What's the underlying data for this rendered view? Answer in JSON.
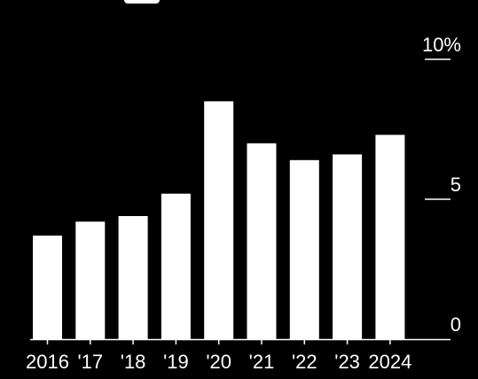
{
  "colors": {
    "background": "#000000",
    "bars": "#ffffff",
    "axis": "#ffffff",
    "text": "#ffffff"
  },
  "chart_data": {
    "type": "bar",
    "categories": [
      "2016",
      "'17",
      "'18",
      "'19",
      "'20",
      "'21",
      "'22",
      "'23",
      "2024"
    ],
    "values": [
      3.7,
      4.2,
      4.4,
      5.2,
      8.5,
      7.0,
      6.4,
      6.6,
      7.3
    ],
    "ylim": [
      0,
      10
    ],
    "yticks": [
      {
        "value": 0,
        "label": "0"
      },
      {
        "value": 5,
        "label": "5"
      },
      {
        "value": 10,
        "label": "10%"
      }
    ],
    "ytick_side": "right",
    "grid": false
  }
}
